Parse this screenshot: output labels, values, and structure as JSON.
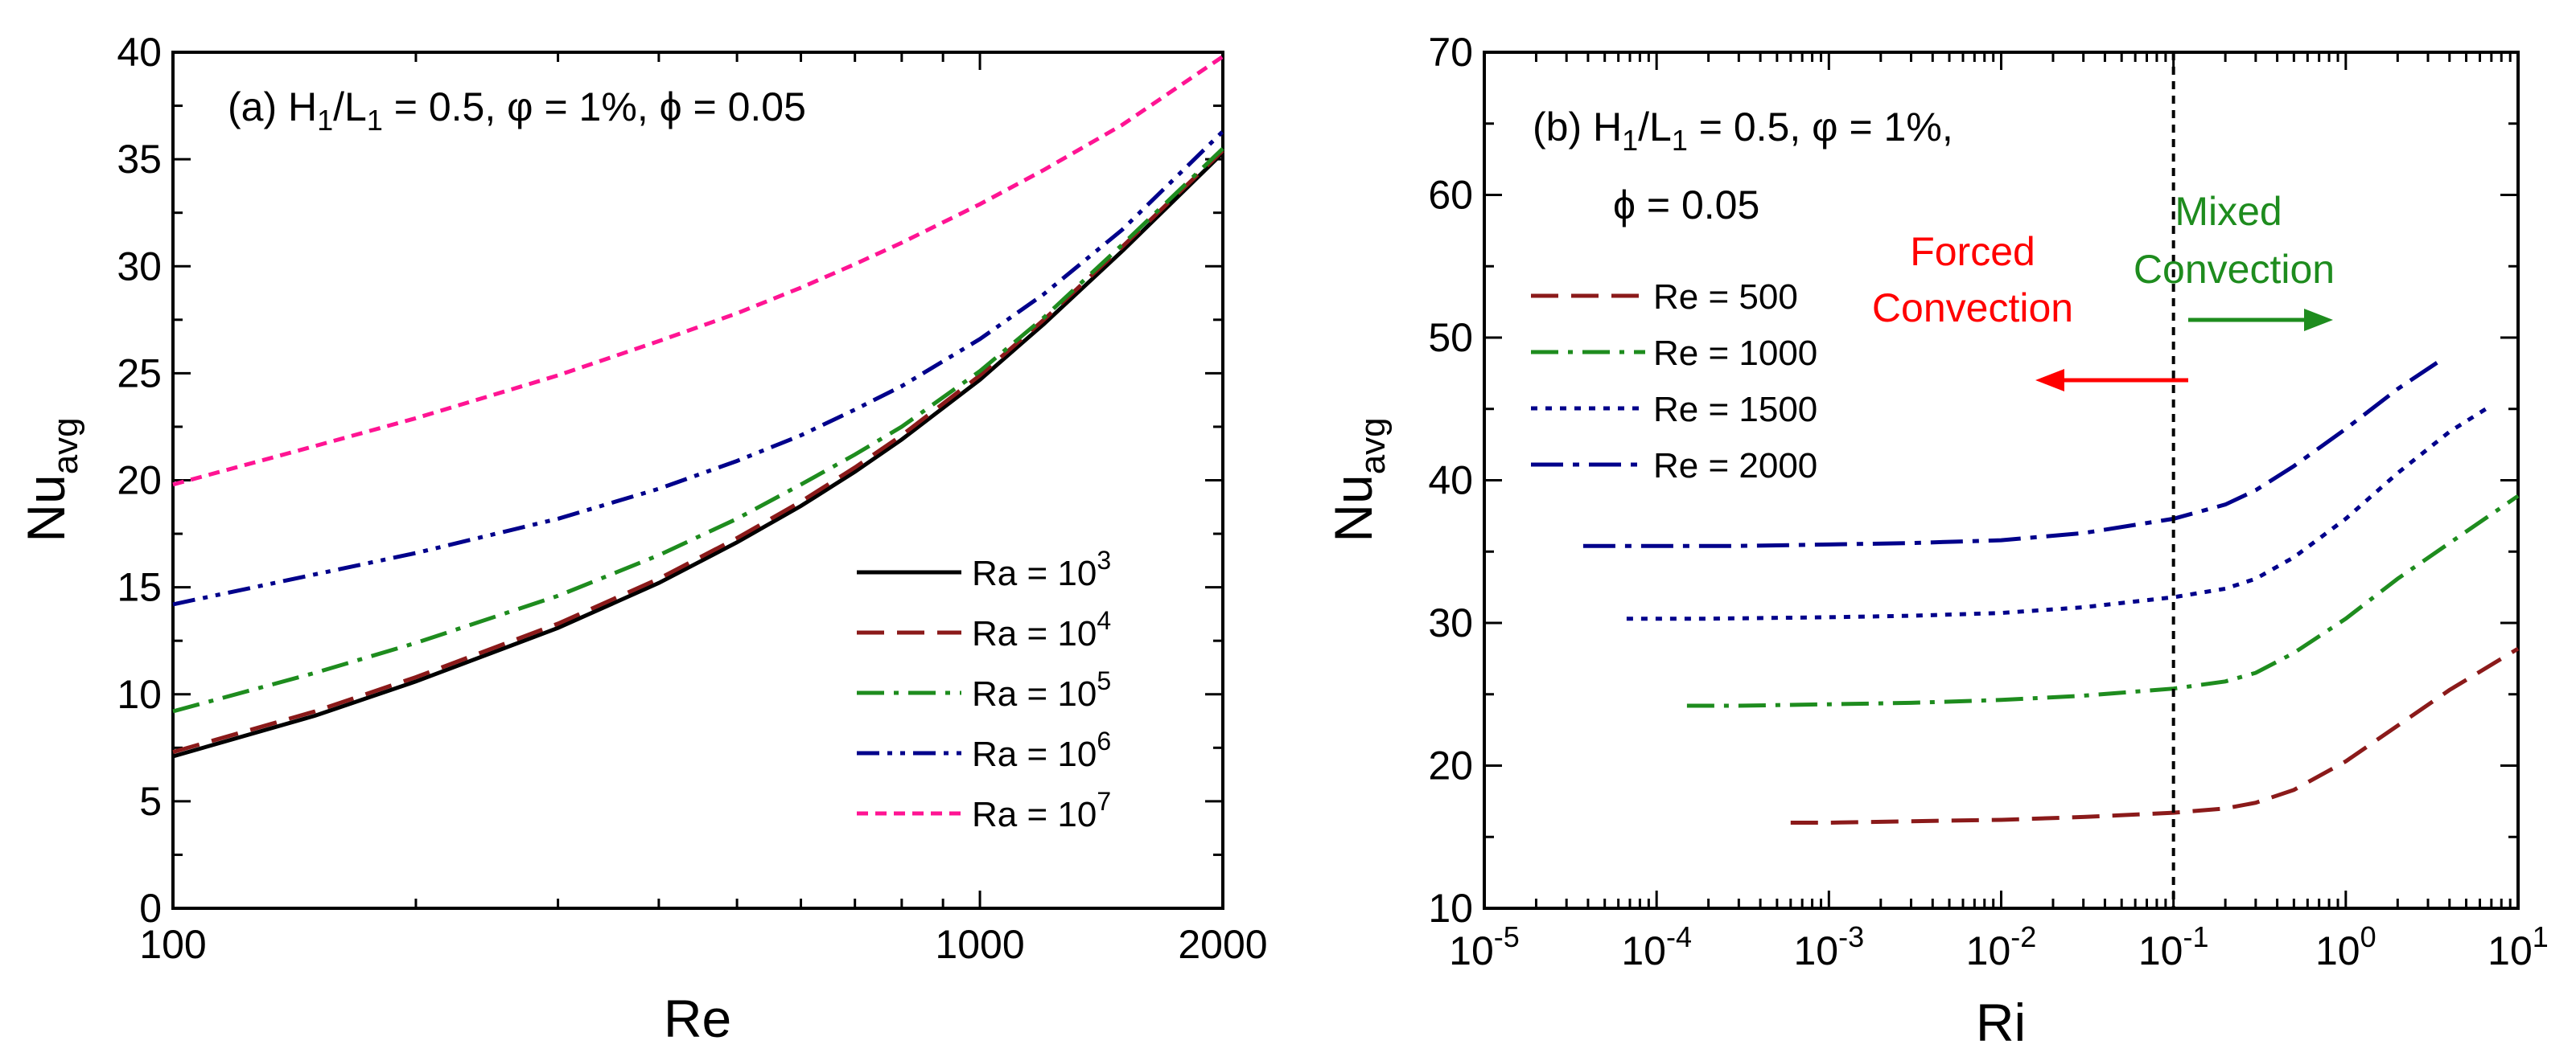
{
  "colors": {
    "black": "#000000",
    "darkred": "#8B1A1A",
    "green": "#1E8C1E",
    "navy": "#00008B",
    "pink": "#FF1493",
    "red": "#FF0000",
    "mixedgreen": "#1E8C1E"
  },
  "chart_data": [
    {
      "panel": "a",
      "type": "line",
      "annotation": "(a)  H1/L1 = 0.5, φ = 1%, ϕ = 0.05",
      "annotation_parts": {
        "prefix": "(a)  H",
        "sub1": "1",
        "mid": "/L",
        "sub2": "1",
        "suffix": " = 0.5, φ = 1%, ϕ = 0.05"
      },
      "xlabel": "Re",
      "ylabel": "Nuavg",
      "ylabel_parts": {
        "main": "Nu",
        "sub": "avg"
      },
      "x_scale": "log",
      "xlim": [
        100,
        2000
      ],
      "ylim": [
        0,
        40
      ],
      "x_ticks": [
        100,
        1000,
        2000
      ],
      "x_tick_labels": [
        "100",
        "1000",
        "2000"
      ],
      "y_ticks": [
        0,
        5,
        10,
        15,
        20,
        25,
        30,
        35,
        40
      ],
      "y_tick_labels": [
        "0",
        "5",
        "10",
        "15",
        "20",
        "25",
        "30",
        "35",
        "40"
      ],
      "legend_position": "bottom-right",
      "x": [
        100,
        150,
        200,
        300,
        400,
        500,
        600,
        700,
        800,
        1000,
        1200,
        1500,
        2000
      ],
      "series": [
        {
          "name": "Ra = 10^3",
          "label_base": "Ra = 10",
          "label_exp": "3",
          "color": "#000000",
          "dash": "solid",
          "values": [
            7.1,
            9.0,
            10.6,
            13.1,
            15.2,
            17.1,
            18.8,
            20.4,
            21.9,
            24.7,
            27.3,
            30.7,
            35.3
          ]
        },
        {
          "name": "Ra = 10^4",
          "label_base": "Ra = 10",
          "label_exp": "4",
          "color": "#8B1A1A",
          "dash": "dash",
          "values": [
            7.3,
            9.2,
            10.8,
            13.3,
            15.4,
            17.3,
            19.0,
            20.6,
            22.1,
            24.9,
            27.5,
            30.9,
            35.4
          ]
        },
        {
          "name": "Ra = 10^5",
          "label_base": "Ra = 10",
          "label_exp": "5",
          "color": "#1E8C1E",
          "dash": "dashdot",
          "values": [
            9.2,
            11.0,
            12.4,
            14.6,
            16.5,
            18.2,
            19.8,
            21.2,
            22.5,
            25.1,
            27.6,
            31.0,
            35.5
          ]
        },
        {
          "name": "Ra = 10^6",
          "label_base": "Ra = 10",
          "label_exp": "6",
          "color": "#00008B",
          "dash": "dashdotdot",
          "values": [
            14.2,
            15.6,
            16.6,
            18.2,
            19.6,
            20.9,
            22.1,
            23.3,
            24.4,
            26.6,
            28.7,
            31.7,
            36.3
          ]
        },
        {
          "name": "Ra = 10^7",
          "label_base": "Ra = 10",
          "label_exp": "7",
          "color": "#FF1493",
          "dash": "shortdash",
          "values": [
            19.8,
            21.6,
            22.9,
            24.9,
            26.5,
            27.8,
            29.0,
            30.1,
            31.1,
            32.9,
            34.5,
            36.6,
            39.8
          ]
        }
      ]
    },
    {
      "panel": "b",
      "type": "line",
      "annotation_line1": "(b)  H1/L1 = 0.5, φ = 1%,",
      "annotation_parts": {
        "prefix": "(b)  H",
        "sub1": "1",
        "mid": "/L",
        "sub2": "1",
        "suffix": " = 0.5, φ = 1%,"
      },
      "annotation_line2": "ϕ = 0.05",
      "xlabel": "Ri",
      "ylabel": "Nuavg",
      "ylabel_parts": {
        "main": "Nu",
        "sub": "avg"
      },
      "x_scale": "log",
      "xlim": [
        1e-05,
        10
      ],
      "ylim": [
        10,
        70
      ],
      "x_tick_exponents": [
        "-5",
        "-4",
        "-3",
        "-2",
        "-1",
        "0",
        "1"
      ],
      "x_tick_base": "10",
      "y_ticks": [
        10,
        20,
        30,
        40,
        50,
        60,
        70
      ],
      "y_tick_labels": [
        "10",
        "20",
        "30",
        "40",
        "50",
        "60",
        "70"
      ],
      "legend_position": "top-left",
      "vline_x": 0.1,
      "forced_label": [
        "Forced",
        "Convection"
      ],
      "mixed_label": [
        "Mixed",
        "Convection"
      ],
      "series": [
        {
          "name": "Re = 500",
          "color": "#8B1A1A",
          "dash": "dash",
          "x": [
            0.0006,
            0.001,
            0.003,
            0.01,
            0.03,
            0.1,
            0.2,
            0.3,
            0.5,
            1,
            2,
            4,
            10
          ],
          "values": [
            16.0,
            16.0,
            16.1,
            16.2,
            16.4,
            16.7,
            17.0,
            17.4,
            18.3,
            20.3,
            22.8,
            25.3,
            28.2
          ]
        },
        {
          "name": "Re = 1000",
          "color": "#1E8C1E",
          "dash": "dashdot",
          "x": [
            0.00015,
            0.0003,
            0.001,
            0.003,
            0.01,
            0.03,
            0.1,
            0.2,
            0.3,
            0.5,
            1,
            2,
            4,
            10
          ],
          "values": [
            24.2,
            24.2,
            24.3,
            24.4,
            24.6,
            24.9,
            25.4,
            25.9,
            26.5,
            27.9,
            30.3,
            33.1,
            35.6,
            38.9
          ]
        },
        {
          "name": "Re = 1500",
          "color": "#00008B",
          "dash": "dot",
          "x": [
            6.7e-05,
            0.0002,
            0.001,
            0.003,
            0.01,
            0.03,
            0.1,
            0.2,
            0.3,
            0.5,
            1,
            2,
            4,
            6.7
          ],
          "values": [
            30.3,
            30.3,
            30.4,
            30.5,
            30.7,
            31.1,
            31.8,
            32.4,
            33.1,
            34.6,
            37.3,
            40.5,
            43.4,
            45.1
          ]
        },
        {
          "name": "Re = 2000",
          "color": "#00008B",
          "dash": "dashdotlong",
          "x": [
            3.75e-05,
            0.0001,
            0.0003,
            0.001,
            0.003,
            0.01,
            0.03,
            0.1,
            0.2,
            0.3,
            0.5,
            1,
            2,
            3.75
          ],
          "values": [
            35.4,
            35.4,
            35.4,
            35.5,
            35.6,
            35.8,
            36.3,
            37.3,
            38.3,
            39.3,
            41.0,
            43.6,
            46.4,
            48.6
          ]
        }
      ]
    }
  ]
}
